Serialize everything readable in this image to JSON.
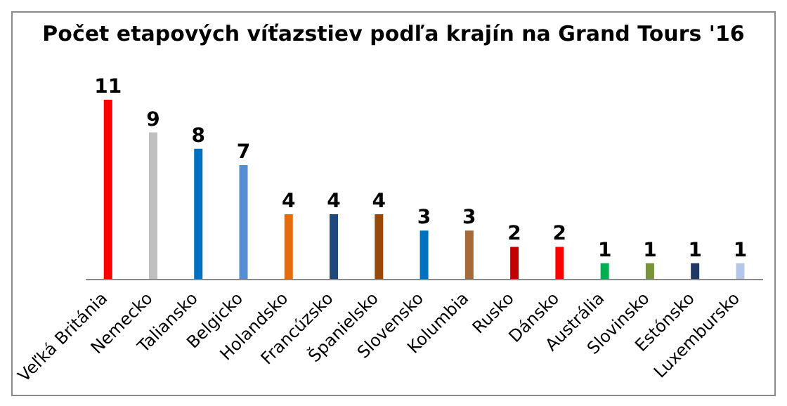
{
  "chart_data": {
    "type": "bar",
    "title": "Počet etapových víťazstiev podľa krajín na Grand Tours '16",
    "categories": [
      "Veľká Británia",
      "Nemecko",
      "Taliansko",
      "Belgicko",
      "Holandsko",
      "Francúzsko",
      "Španielsko",
      "Slovensko",
      "Kolumbia",
      "Rusko",
      "Dánsko",
      "Austrália",
      "Slovinsko",
      "Estónsko",
      "Luxembursko"
    ],
    "values": [
      11,
      9,
      8,
      7,
      4,
      4,
      4,
      3,
      3,
      2,
      2,
      1,
      1,
      1,
      1
    ],
    "colors": [
      "#ff0000",
      "#c0c0c0",
      "#0070c0",
      "#558ed5",
      "#e46c0a",
      "#1f497d",
      "#984807",
      "#0070c0",
      "#a5693a",
      "#c00000",
      "#ff0000",
      "#00b050",
      "#77933c",
      "#1f3864",
      "#b4c7e7"
    ],
    "data_labels": true
  }
}
